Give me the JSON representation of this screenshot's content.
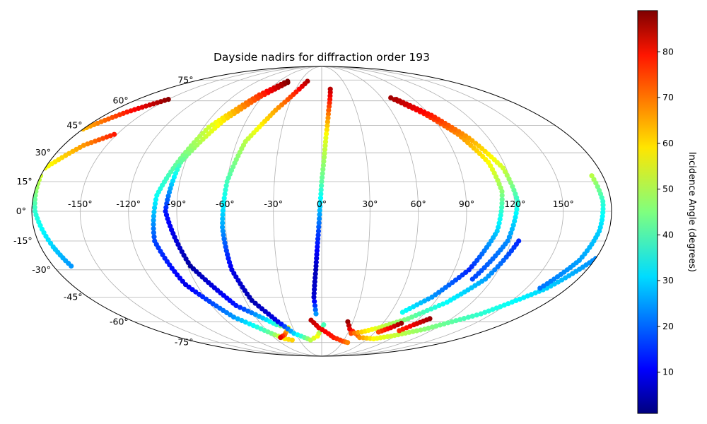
{
  "chart_data": {
    "type": "scatter",
    "projection": "mollweide",
    "title": "Dayside nadirs for diffraction order 193",
    "colormap": "jet",
    "colorbar": {
      "label": "Incidence Angle (degrees)",
      "range": [
        1,
        89
      ],
      "ticks": [
        "10",
        "20",
        "30",
        "40",
        "50",
        "60",
        "70",
        "80"
      ],
      "placement": "right"
    },
    "grid": true,
    "x_ticks": [
      "-150°",
      "-120°",
      "-90°",
      "-60°",
      "-30°",
      "0°",
      "30°",
      "60°",
      "90°",
      "120°",
      "150°"
    ],
    "y_ticks": [
      "-75°",
      "-60°",
      "-45°",
      "-30°",
      "-15°",
      "0°",
      "15°",
      "30°",
      "45°",
      "60°",
      "75°"
    ],
    "xlim": [
      -180,
      180
    ],
    "ylim": [
      -90,
      90
    ],
    "tracks": [
      {
        "wrap": 0,
        "points": [
          [
            -150,
            61,
            88
          ],
          [
            -166,
            53,
            76
          ],
          [
            -180,
            43,
            62
          ]
        ]
      },
      {
        "wrap": 0,
        "points": [
          [
            -180,
            18,
            52
          ],
          [
            -178,
            0,
            38
          ],
          [
            -172,
            -18,
            30
          ],
          [
            -168,
            -28,
            25
          ]
        ]
      },
      {
        "wrap": 0,
        "points": [
          [
            -152,
            40,
            76
          ],
          [
            -166,
            34,
            65
          ],
          [
            -180,
            22,
            55
          ]
        ]
      },
      {
        "wrap": 0,
        "points": [
          [
            -48,
            74,
            89
          ],
          [
            -65,
            64,
            74
          ],
          [
            -86,
            44,
            52
          ],
          [
            -103,
            8,
            35
          ],
          [
            -106,
            -15,
            18
          ],
          [
            -98,
            -38,
            10
          ],
          [
            -80,
            -57,
            25
          ],
          [
            -58,
            -68,
            44
          ],
          [
            -48,
            -72,
            58
          ],
          [
            -40,
            -73,
            60
          ]
        ]
      },
      {
        "wrap": 0,
        "points": [
          [
            -46,
            73,
            89
          ],
          [
            -62,
            63,
            74
          ],
          [
            -78,
            48,
            58
          ],
          [
            -93,
            25,
            42
          ],
          [
            -97,
            0,
            14
          ],
          [
            -88,
            -28,
            4
          ],
          [
            -70,
            -50,
            14
          ],
          [
            -45,
            -62,
            38
          ],
          [
            -35,
            -64,
            55
          ],
          [
            -38,
            -66,
            60
          ],
          [
            -44,
            -69,
            70
          ],
          [
            -52,
            -71,
            80
          ]
        ]
      },
      {
        "wrap": 0,
        "points": [
          [
            -20,
            74,
            85
          ],
          [
            -28,
            66,
            76
          ],
          [
            -40,
            54,
            64
          ],
          [
            -54,
            36,
            50
          ],
          [
            -60,
            15,
            40
          ],
          [
            -62,
            -8,
            26
          ],
          [
            -61,
            -30,
            10
          ],
          [
            -55,
            -47,
            5
          ],
          [
            -42,
            -60,
            10
          ],
          [
            -32,
            -68,
            30
          ],
          [
            -15,
            -73,
            50
          ],
          [
            -5,
            -70,
            56
          ],
          [
            2,
            -62,
            40
          ]
        ]
      },
      {
        "wrap": 0,
        "points": [
          [
            10,
            68,
            84
          ],
          [
            6,
            54,
            70
          ],
          [
            3,
            38,
            54
          ],
          [
            0,
            15,
            42
          ],
          [
            -2,
            -10,
            18
          ],
          [
            -4,
            -30,
            6
          ],
          [
            -6,
            -45,
            8
          ],
          [
            -5,
            -55,
            25
          ]
        ]
      },
      {
        "wrap": 0,
        "points": [
          [
            -10,
            -59,
            84
          ],
          [
            -3,
            -64,
            80
          ],
          [
            15,
            -71,
            76
          ],
          [
            30,
            -74,
            72
          ],
          [
            38,
            -75,
            67
          ]
        ]
      },
      {
        "wrap": 0,
        "points": [
          [
            25,
            -60,
            87
          ],
          [
            30,
            -65,
            80
          ],
          [
            48,
            -71,
            66
          ],
          [
            68,
            -72,
            56
          ],
          [
            85,
            -70,
            52
          ],
          [
            110,
            -65,
            46
          ],
          [
            140,
            -55,
            38
          ],
          [
            165,
            -40,
            30
          ],
          [
            180,
            -24,
            24
          ]
        ]
      },
      {
        "wrap": 0,
        "points": [
          [
            34,
            -68,
            72
          ],
          [
            45,
            -67,
            60
          ],
          [
            60,
            -64,
            52
          ],
          [
            80,
            -58,
            44
          ],
          [
            100,
            -48,
            34
          ],
          [
            115,
            -35,
            26
          ],
          [
            125,
            -15,
            15
          ]
        ]
      },
      {
        "wrap": 0,
        "points": [
          [
            78,
            -61,
            87
          ],
          [
            72,
            -64,
            80
          ],
          [
            64,
            -67,
            72
          ]
        ]
      },
      {
        "wrap": 0,
        "points": [
          [
            100,
            -58,
            87
          ],
          [
            92,
            -62,
            80
          ],
          [
            85,
            -66,
            74
          ]
        ]
      },
      {
        "wrap": 0,
        "points": [
          [
            69,
            62,
            86
          ],
          [
            86,
            52,
            76
          ],
          [
            100,
            40,
            66
          ],
          [
            110,
            25,
            56
          ],
          [
            113,
            10,
            46
          ],
          [
            110,
            -10,
            30
          ],
          [
            100,
            -30,
            15
          ],
          [
            85,
            -45,
            25
          ],
          [
            70,
            -54,
            35
          ]
        ]
      },
      {
        "wrap": 0,
        "points": [
          [
            73,
            61,
            85
          ],
          [
            91,
            51,
            76
          ],
          [
            106,
            38,
            64
          ],
          [
            118,
            22,
            52
          ],
          [
            122,
            5,
            38
          ],
          [
            118,
            -15,
            24
          ],
          [
            106,
            -35,
            18
          ]
        ]
      },
      {
        "wrap": 0,
        "points": [
          [
            173,
            18,
            50
          ],
          [
            175,
            5,
            38
          ],
          [
            174,
            -10,
            30
          ],
          [
            170,
            -25,
            26
          ],
          [
            160,
            -40,
            22
          ]
        ]
      }
    ]
  }
}
